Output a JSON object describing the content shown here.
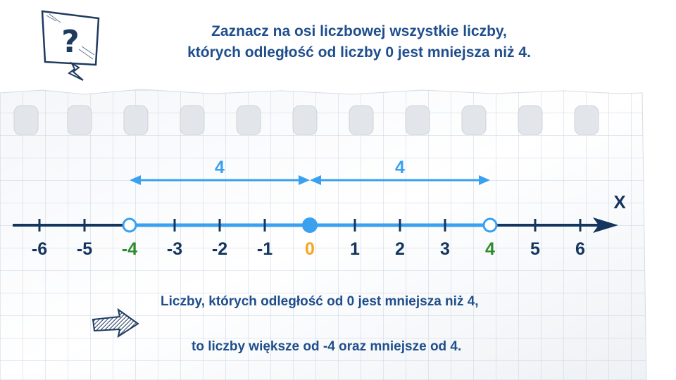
{
  "title": {
    "line1": "Zaznacz na osi liczbowej wszystkie liczby,",
    "line2": "których odległość od liczby 0 jest mniejsza niż 4."
  },
  "number_line": {
    "axis_label": "X",
    "ticks": [
      -6,
      -5,
      -4,
      -3,
      -2,
      -1,
      0,
      1,
      2,
      3,
      4,
      5,
      6
    ],
    "tick_labels": [
      "-6",
      "-5",
      "-4",
      "-3",
      "-2",
      "-1",
      "0",
      "1",
      "2",
      "3",
      "4",
      "5",
      "6"
    ],
    "highlight": {
      "-4": "#2e8b2e",
      "0": "#f5a623",
      "4": "#2e8b2e"
    },
    "interval": {
      "from": -4,
      "to": 4,
      "open_ends": true,
      "color": "#3aa0f0"
    },
    "center_point": 0,
    "distance_arrows": [
      {
        "from": -4,
        "to": 0,
        "label": "4"
      },
      {
        "from": 0,
        "to": 4,
        "label": "4"
      }
    ]
  },
  "caption": {
    "line1": "Liczby, których odległość od 0 jest mniejsza niż 4,",
    "line2": "to liczby większe od -4 oraz mniejsze od 4."
  },
  "icons": {
    "question": "question-sign-icon",
    "pointer": "hatched-arrow-icon"
  },
  "colors": {
    "text": "#1f4e8c",
    "axis": "#14355e",
    "interval": "#3aa0f0",
    "grid": "#c9d3e3"
  }
}
